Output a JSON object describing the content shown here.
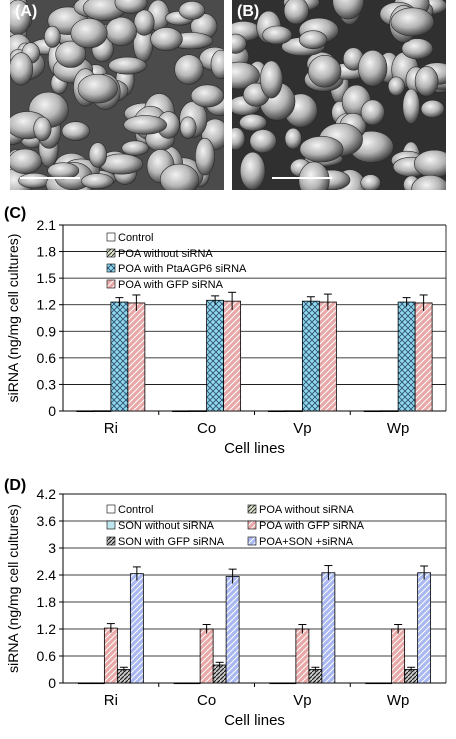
{
  "micrographs": [
    {
      "label": "(A)",
      "image": "SEM micrograph"
    },
    {
      "label": "(B)",
      "image": "SEM micrograph"
    }
  ],
  "colors": {
    "hatch_blue": "#8fd8e8",
    "hatch_pink": "#e8a8a8",
    "hatch_periwinkle": "#a9b8f0",
    "hatch_dark": "#3a3a3a",
    "grid": "#000000"
  },
  "chart_data": [
    {
      "panel_label": "(C)",
      "type": "bar",
      "xlabel": "Cell lines",
      "ylabel": "siRNA (ng/mg cell cultures)",
      "categories": [
        "Ri",
        "Co",
        "Vp",
        "Wp"
      ],
      "ylim": [
        0,
        2.1
      ],
      "yticks": [
        "0",
        "0.3",
        "0.6",
        "0.9",
        "1.2",
        "1.5",
        "1.8",
        "2.1"
      ],
      "grid": true,
      "legend_position": "top-left",
      "series": [
        {
          "name": "Control",
          "values": [
            0.002,
            0.002,
            0.002,
            0.002
          ],
          "errors": [
            0,
            0,
            0,
            0
          ]
        },
        {
          "name": "POA without siRNA",
          "values": [
            0.003,
            0.003,
            0.003,
            0.003
          ],
          "errors": [
            0,
            0,
            0,
            0
          ]
        },
        {
          "name": "POA with PtaAGP6 siRNA",
          "values": [
            1.23,
            1.25,
            1.24,
            1.23
          ],
          "errors": [
            0.05,
            0.05,
            0.05,
            0.05
          ]
        },
        {
          "name": "POA with GFP siRNA",
          "values": [
            1.22,
            1.24,
            1.23,
            1.22
          ],
          "errors": [
            0.09,
            0.1,
            0.09,
            0.09
          ]
        }
      ]
    },
    {
      "panel_label": "(D)",
      "type": "bar",
      "xlabel": "Cell lines",
      "ylabel": "siRNA (ng/mg cell cultures)",
      "categories": [
        "Ri",
        "Co",
        "Vp",
        "Wp"
      ],
      "ylim": [
        0,
        4.2
      ],
      "yticks": [
        "0",
        "0.6",
        "1.2",
        "1.8",
        "2.4",
        "3",
        "3.6",
        "4.2"
      ],
      "grid": true,
      "legend_position": "top",
      "series": [
        {
          "name": "Control",
          "values": [
            0.003,
            0.003,
            0.003,
            0.003
          ],
          "errors": [
            0,
            0,
            0,
            0
          ]
        },
        {
          "name": "SON without siRNA",
          "values": [
            0.003,
            0.003,
            0.003,
            0.003
          ],
          "errors": [
            0,
            0,
            0,
            0
          ]
        },
        {
          "name": "POA with GFP siRNA",
          "values": [
            1.22,
            1.2,
            1.2,
            1.2
          ],
          "errors": [
            0.1,
            0.1,
            0.1,
            0.1
          ]
        },
        {
          "name": "SON with GFP siRNA",
          "values": [
            0.3,
            0.4,
            0.3,
            0.3
          ],
          "errors": [
            0.05,
            0.06,
            0.05,
            0.05
          ]
        },
        {
          "name": "POA+SON +siRNA",
          "values": [
            2.43,
            2.37,
            2.45,
            2.45
          ],
          "errors": [
            0.15,
            0.16,
            0.16,
            0.15
          ]
        },
        {
          "name": "POA without siRNA",
          "values": [
            0.003,
            0.003,
            0.003,
            0.003
          ],
          "errors": [
            0,
            0,
            0,
            0
          ]
        }
      ]
    }
  ]
}
